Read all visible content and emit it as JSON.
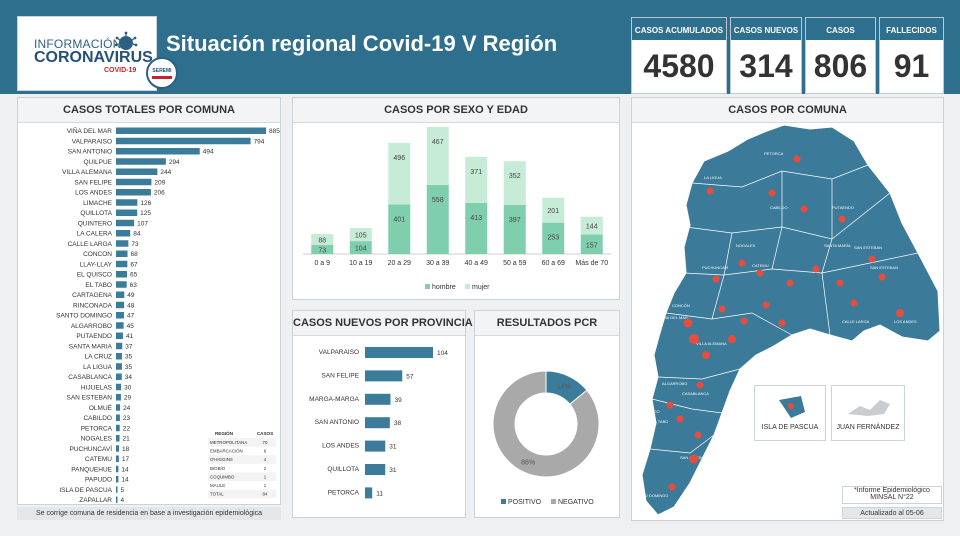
{
  "header": {
    "logo_line1": "INFORMACIÓN",
    "logo_line2": "CORONAVIRUS",
    "logo_line3": "COVID-19",
    "seremi": "SEREMI",
    "title": "Situación regional Covid-19 V Región",
    "brand_color": "#2e6f8e"
  },
  "kpis": [
    {
      "label": "CASOS ACUMULADOS",
      "value": "4580"
    },
    {
      "label": "CASOS NUEVOS",
      "value": "314"
    },
    {
      "label": "CASOS ACTIVOS*",
      "value": "806"
    },
    {
      "label": "FALLECIDOS",
      "value": "91"
    }
  ],
  "panels": {
    "comuna_bars": "CASOS TOTALES POR COMUNA",
    "sexo_edad": "CASOS POR SEXO Y EDAD",
    "provincia": "CASOS NUEVOS  POR PROVINCIA",
    "pcr": "RESULTADOS PCR",
    "map": "CASOS POR COMUNA"
  },
  "footnote": "Se corrige comuna de residencia en base a investigación epidemiológica",
  "map_insets": {
    "pascua": "ISLA DE PASCUA",
    "fernandez": "JUAN FERNÁNDEZ"
  },
  "map_notes": {
    "informe_line1": "*Informe Epidemiológico",
    "informe_line2": "MINSAL N°22",
    "updated": "Actualizado al 05-06"
  },
  "region_table": {
    "headers": [
      "REGIÓN",
      "CASOS"
    ],
    "rows": [
      [
        "METROPOLITANA",
        "70"
      ],
      [
        "EMBARCACIÓN",
        "6"
      ],
      [
        "O'HIGGINS",
        "4"
      ],
      [
        "BIOBÍO",
        "2"
      ],
      [
        "COQUIMBO",
        "1"
      ],
      [
        "MAULE",
        "1"
      ],
      [
        "TOTAL",
        "84"
      ]
    ]
  },
  "chart_data": [
    {
      "type": "bar",
      "orientation": "horizontal",
      "title": "CASOS TOTALES POR COMUNA",
      "categories": [
        "VIÑA DEL MAR",
        "VALPARAISO",
        "SAN ANTONIO",
        "QUILPUE",
        "VILLA ALEMANA",
        "SAN FELIPE",
        "LOS ANDES",
        "LIMACHE",
        "QUILLOTA",
        "QUINTERO",
        "LA CALERA",
        "CALLE LARGA",
        "CONCON",
        "LLAY-LLAY",
        "EL QUISCO",
        "EL TABO",
        "CARTAGENA",
        "RINCONADA",
        "SANTO DOMINGO",
        "ALGARROBO",
        "PUTAENDO",
        "SANTA MARIA",
        "LA CRUZ",
        "LA LIGUA",
        "CASABLANCA",
        "HIJUELAS",
        "SAN ESTEBAN",
        "OLMUÉ",
        "CABILDO",
        "PETORCA",
        "NOGALES",
        "PUCHUNCAVÍ",
        "CATEMU",
        "PANQUEHUE",
        "PAPUDO",
        "ISLA DE PASCUA",
        "ZAPALLAR"
      ],
      "values": [
        885,
        794,
        494,
        294,
        244,
        209,
        206,
        126,
        125,
        107,
        84,
        73,
        68,
        67,
        65,
        63,
        49,
        48,
        47,
        45,
        41,
        37,
        35,
        35,
        34,
        30,
        29,
        24,
        23,
        22,
        21,
        18,
        17,
        14,
        14,
        5,
        4
      ],
      "color": "#3a7c9a"
    },
    {
      "type": "bar",
      "stacked": true,
      "title": "CASOS POR SEXO Y EDAD",
      "categories": [
        "0 a 9",
        "10 a 19",
        "20 a 29",
        "30 a 39",
        "40 a 49",
        "50 a 59",
        "60 a 69",
        "Más de 70"
      ],
      "series": [
        {
          "name": "hombre",
          "values": [
            73,
            104,
            401,
            558,
            413,
            397,
            253,
            157
          ],
          "color": "#7fcfae"
        },
        {
          "name": "mujer",
          "values": [
            88,
            105,
            496,
            467,
            371,
            352,
            201,
            144
          ],
          "color": "#c6ebd6"
        }
      ],
      "legend": "bottom"
    },
    {
      "type": "bar",
      "orientation": "horizontal",
      "title": "CASOS NUEVOS  POR PROVINCIA",
      "categories": [
        "VALPARAISO",
        "SAN FELIPE",
        "MARGA-MARGA",
        "SAN ANTONIO",
        "LOS ANDES",
        "QUILLOTA",
        "PETORCA"
      ],
      "values": [
        104,
        57,
        39,
        38,
        31,
        31,
        11
      ],
      "color": "#3a7c9a"
    },
    {
      "type": "pie",
      "donut": true,
      "title": "RESULTADOS PCR",
      "slices": [
        {
          "name": "POSITIVO",
          "value": 14,
          "label": "14%",
          "color": "#3a7c9a"
        },
        {
          "name": "NEGATIVO",
          "value": 86,
          "label": "86%",
          "color": "#a9a9a9"
        }
      ],
      "legend": "bottom"
    }
  ]
}
